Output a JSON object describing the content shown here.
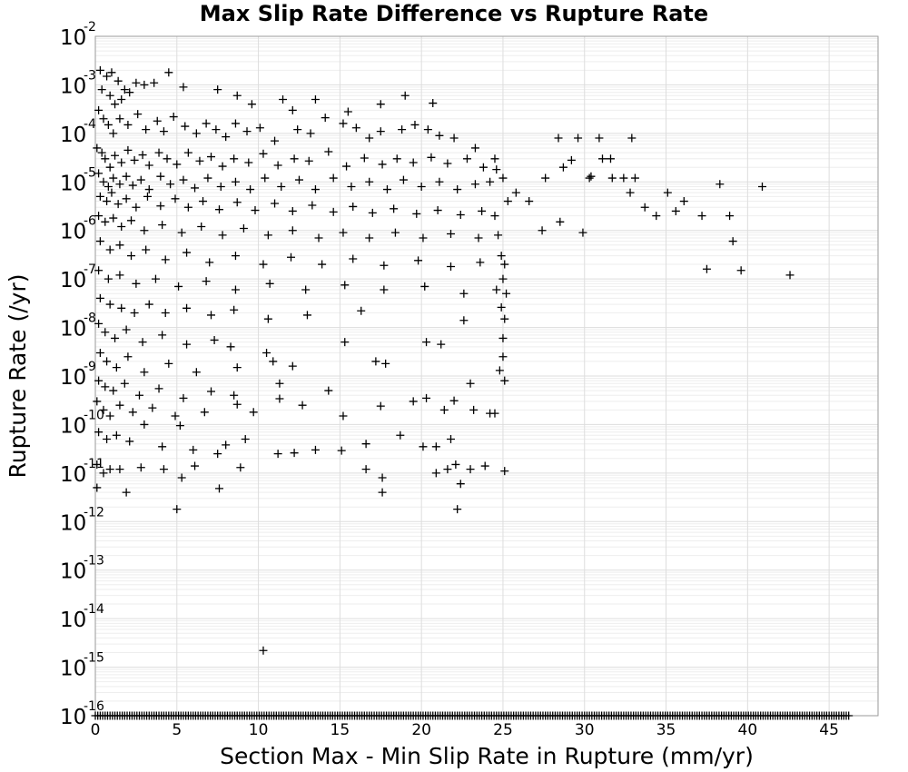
{
  "chart_data": {
    "type": "scatter",
    "title": "Max Slip Rate Difference vs Rupture Rate",
    "xlabel": "Section Max - Min Slip Rate in Rupture (mm/yr)",
    "ylabel": "Rupture Rate (/yr)",
    "x_scale": "linear",
    "y_scale": "log",
    "xlim": [
      0,
      48
    ],
    "ylim": [
      1e-16,
      0.01
    ],
    "grid": true,
    "legend": "none",
    "marker": "plus",
    "marker_color": "#000000",
    "x_ticks": [
      "0",
      "5",
      "10",
      "15",
      "20",
      "25",
      "30",
      "35",
      "40",
      "45"
    ],
    "y_ticks": [
      {
        "base": "10",
        "exp": "-2"
      },
      {
        "base": "10",
        "exp": "-3"
      },
      {
        "base": "10",
        "exp": "-4"
      },
      {
        "base": "10",
        "exp": "-5"
      },
      {
        "base": "10",
        "exp": "-6"
      },
      {
        "base": "10",
        "exp": "-7"
      },
      {
        "base": "10",
        "exp": "-8"
      },
      {
        "base": "10",
        "exp": "-9"
      },
      {
        "base": "10",
        "exp": "-10"
      },
      {
        "base": "10",
        "exp": "-11"
      },
      {
        "base": "10",
        "exp": "-12"
      },
      {
        "base": "10",
        "exp": "-13"
      },
      {
        "base": "10",
        "exp": "-14"
      },
      {
        "base": "10",
        "exp": "-15"
      },
      {
        "base": "10",
        "exp": "-16"
      }
    ],
    "points": [
      [
        0.3,
        0.002
      ],
      [
        0.7,
        0.0015
      ],
      [
        1.0,
        0.0018
      ],
      [
        1.4,
        0.0012
      ],
      [
        1.8,
        0.0008
      ],
      [
        0.4,
        0.0008
      ],
      [
        0.9,
        0.0006
      ],
      [
        1.2,
        0.0004
      ],
      [
        1.6,
        0.0005
      ],
      [
        2.1,
        0.0007
      ],
      [
        2.5,
        0.0011
      ],
      [
        3.0,
        0.001
      ],
      [
        3.6,
        0.0011
      ],
      [
        4.5,
        0.0018
      ],
      [
        5.4,
        0.0009
      ],
      [
        7.5,
        0.0008
      ],
      [
        8.7,
        0.0006
      ],
      [
        9.6,
        0.0004
      ],
      [
        11.5,
        0.0005
      ],
      [
        12.1,
        0.0003
      ],
      [
        13.5,
        0.0005
      ],
      [
        15.5,
        0.00028
      ],
      [
        17.5,
        0.0004
      ],
      [
        19.0,
        0.0006
      ],
      [
        20.7,
        0.00042
      ],
      [
        0.2,
        0.0003
      ],
      [
        0.5,
        0.0002
      ],
      [
        0.8,
        0.00015
      ],
      [
        1.1,
        0.0001
      ],
      [
        1.5,
        0.0002
      ],
      [
        2.0,
        0.00015
      ],
      [
        2.6,
        0.00025
      ],
      [
        3.1,
        0.00012
      ],
      [
        3.8,
        0.00018
      ],
      [
        4.2,
        0.00011
      ],
      [
        4.8,
        0.00022
      ],
      [
        5.5,
        0.00014
      ],
      [
        6.2,
        0.0001
      ],
      [
        6.8,
        0.00016
      ],
      [
        7.4,
        0.00012
      ],
      [
        8.0,
        8.5e-05
      ],
      [
        8.6,
        0.00016
      ],
      [
        9.3,
        0.00011
      ],
      [
        10.1,
        0.00013
      ],
      [
        11.0,
        7e-05
      ],
      [
        12.4,
        0.00012
      ],
      [
        13.2,
        0.0001
      ],
      [
        14.1,
        0.00021
      ],
      [
        15.2,
        0.00016
      ],
      [
        16.0,
        0.00013
      ],
      [
        16.8,
        8e-05
      ],
      [
        17.5,
        0.00011
      ],
      [
        18.8,
        0.00012
      ],
      [
        19.6,
        0.00015
      ],
      [
        20.4,
        0.00012
      ],
      [
        21.1,
        9e-05
      ],
      [
        22.0,
        8e-05
      ],
      [
        23.3,
        5e-05
      ],
      [
        24.5,
        3e-05
      ],
      [
        0.1,
        5e-05
      ],
      [
        0.4,
        4e-05
      ],
      [
        0.6,
        3e-05
      ],
      [
        0.9,
        2e-05
      ],
      [
        1.2,
        3.5e-05
      ],
      [
        1.6,
        2.5e-05
      ],
      [
        2.0,
        4.5e-05
      ],
      [
        2.4,
        2.8e-05
      ],
      [
        2.9,
        3.6e-05
      ],
      [
        3.3,
        2.2e-05
      ],
      [
        3.9,
        4e-05
      ],
      [
        4.4,
        3e-05
      ],
      [
        5.0,
        2.3e-05
      ],
      [
        5.7,
        4e-05
      ],
      [
        6.4,
        2.7e-05
      ],
      [
        7.1,
        3.3e-05
      ],
      [
        7.8,
        2.1e-05
      ],
      [
        8.5,
        3e-05
      ],
      [
        9.4,
        2.5e-05
      ],
      [
        10.3,
        3.8e-05
      ],
      [
        11.2,
        2.2e-05
      ],
      [
        12.2,
        3e-05
      ],
      [
        13.1,
        2.7e-05
      ],
      [
        14.3,
        4.2e-05
      ],
      [
        15.4,
        2.1e-05
      ],
      [
        16.5,
        3.1e-05
      ],
      [
        17.6,
        2.3e-05
      ],
      [
        18.5,
        3e-05
      ],
      [
        19.5,
        2.5e-05
      ],
      [
        20.6,
        3.2e-05
      ],
      [
        21.6,
        2.4e-05
      ],
      [
        22.8,
        3e-05
      ],
      [
        23.8,
        2e-05
      ],
      [
        24.6,
        1.8e-05
      ],
      [
        0.2,
        1.5e-05
      ],
      [
        0.5,
        1e-05
      ],
      [
        0.8,
        8e-06
      ],
      [
        1.1,
        1.2e-05
      ],
      [
        1.5,
        9e-06
      ],
      [
        1.9,
        1.3e-05
      ],
      [
        2.3,
        8.5e-06
      ],
      [
        2.8,
        1.1e-05
      ],
      [
        3.3,
        7e-06
      ],
      [
        4.0,
        1.3e-05
      ],
      [
        4.6,
        9e-06
      ],
      [
        5.4,
        1.1e-05
      ],
      [
        6.1,
        7.5e-06
      ],
      [
        6.9,
        1.2e-05
      ],
      [
        7.7,
        8e-06
      ],
      [
        8.6,
        1e-05
      ],
      [
        9.5,
        7e-06
      ],
      [
        10.4,
        1.2e-05
      ],
      [
        11.4,
        8e-06
      ],
      [
        12.5,
        1.1e-05
      ],
      [
        13.5,
        7e-06
      ],
      [
        14.6,
        1.2e-05
      ],
      [
        15.7,
        8e-06
      ],
      [
        16.8,
        1e-05
      ],
      [
        17.9,
        7e-06
      ],
      [
        18.9,
        1.1e-05
      ],
      [
        20.0,
        8e-06
      ],
      [
        21.1,
        1e-05
      ],
      [
        22.2,
        7e-06
      ],
      [
        23.3,
        9e-06
      ],
      [
        24.2,
        1e-05
      ],
      [
        25.0,
        1.2e-05
      ],
      [
        25.8,
        6e-06
      ],
      [
        0.3,
        5e-06
      ],
      [
        0.7,
        4e-06
      ],
      [
        1.0,
        6e-06
      ],
      [
        1.4,
        3.5e-06
      ],
      [
        1.9,
        4.5e-06
      ],
      [
        2.5,
        3e-06
      ],
      [
        3.2,
        5e-06
      ],
      [
        4.0,
        3.2e-06
      ],
      [
        4.9,
        4.5e-06
      ],
      [
        5.7,
        3e-06
      ],
      [
        6.6,
        4e-06
      ],
      [
        7.6,
        2.7e-06
      ],
      [
        8.7,
        3.8e-06
      ],
      [
        9.8,
        2.6e-06
      ],
      [
        11.0,
        3.6e-06
      ],
      [
        12.1,
        2.5e-06
      ],
      [
        13.3,
        3.3e-06
      ],
      [
        14.6,
        2.4e-06
      ],
      [
        15.8,
        3.1e-06
      ],
      [
        17.0,
        2.3e-06
      ],
      [
        18.3,
        2.8e-06
      ],
      [
        19.7,
        2.2e-06
      ],
      [
        21.0,
        2.6e-06
      ],
      [
        22.4,
        2.1e-06
      ],
      [
        23.7,
        2.5e-06
      ],
      [
        24.5,
        2e-06
      ],
      [
        25.3,
        4e-06
      ],
      [
        0.2,
        2e-06
      ],
      [
        0.6,
        1.5e-06
      ],
      [
        1.1,
        1.8e-06
      ],
      [
        1.6,
        1.2e-06
      ],
      [
        2.2,
        1.6e-06
      ],
      [
        3.0,
        1e-06
      ],
      [
        4.1,
        1.3e-06
      ],
      [
        5.3,
        9e-07
      ],
      [
        6.5,
        1.2e-06
      ],
      [
        7.8,
        8e-07
      ],
      [
        9.1,
        1.1e-06
      ],
      [
        10.6,
        8e-07
      ],
      [
        12.1,
        1e-06
      ],
      [
        13.7,
        7e-07
      ],
      [
        15.2,
        9e-07
      ],
      [
        16.8,
        7e-07
      ],
      [
        18.4,
        9e-07
      ],
      [
        20.1,
        7e-07
      ],
      [
        21.8,
        8.5e-07
      ],
      [
        23.5,
        7e-07
      ],
      [
        24.7,
        8e-07
      ],
      [
        0.3,
        6e-07
      ],
      [
        0.9,
        4e-07
      ],
      [
        1.5,
        5e-07
      ],
      [
        2.2,
        3e-07
      ],
      [
        3.1,
        4e-07
      ],
      [
        4.3,
        2.5e-07
      ],
      [
        5.6,
        3.5e-07
      ],
      [
        7.0,
        2.2e-07
      ],
      [
        8.6,
        3e-07
      ],
      [
        10.3,
        2e-07
      ],
      [
        12.0,
        2.8e-07
      ],
      [
        13.9,
        2e-07
      ],
      [
        15.8,
        2.6e-07
      ],
      [
        17.7,
        1.9e-07
      ],
      [
        19.8,
        2.4e-07
      ],
      [
        21.8,
        1.8e-07
      ],
      [
        23.6,
        2.2e-07
      ],
      [
        24.9,
        3e-07
      ],
      [
        25.1,
        2e-07
      ],
      [
        0.2,
        1.5e-07
      ],
      [
        0.8,
        1e-07
      ],
      [
        1.5,
        1.2e-07
      ],
      [
        2.5,
        8e-08
      ],
      [
        3.7,
        1e-07
      ],
      [
        5.1,
        7e-08
      ],
      [
        6.8,
        9e-08
      ],
      [
        8.6,
        6e-08
      ],
      [
        10.7,
        8e-08
      ],
      [
        12.9,
        6e-08
      ],
      [
        15.3,
        7.5e-08
      ],
      [
        17.7,
        6e-08
      ],
      [
        20.2,
        7e-08
      ],
      [
        22.6,
        5e-08
      ],
      [
        24.6,
        6e-08
      ],
      [
        25.0,
        1e-07
      ],
      [
        25.2,
        5e-08
      ],
      [
        0.3,
        4e-08
      ],
      [
        0.9,
        3e-08
      ],
      [
        1.6,
        2.5e-08
      ],
      [
        2.4,
        2e-08
      ],
      [
        3.3,
        3e-08
      ],
      [
        4.3,
        2e-08
      ],
      [
        5.6,
        2.5e-08
      ],
      [
        7.1,
        1.8e-08
      ],
      [
        8.5,
        2.3e-08
      ],
      [
        10.6,
        1.5e-08
      ],
      [
        13.0,
        1.8e-08
      ],
      [
        16.3,
        2.2e-08
      ],
      [
        22.6,
        1.4e-08
      ],
      [
        24.9,
        2.6e-08
      ],
      [
        25.1,
        1.5e-08
      ],
      [
        0.2,
        1.2e-08
      ],
      [
        0.6,
        8e-09
      ],
      [
        1.2,
        6e-09
      ],
      [
        1.9,
        9e-09
      ],
      [
        2.9,
        5e-09
      ],
      [
        4.1,
        7e-09
      ],
      [
        5.6,
        4.5e-09
      ],
      [
        7.3,
        5.5e-09
      ],
      [
        8.3,
        4e-09
      ],
      [
        10.5,
        3e-09
      ],
      [
        15.3,
        5e-09
      ],
      [
        20.3,
        5e-09
      ],
      [
        21.2,
        4.5e-09
      ],
      [
        25.0,
        6e-09
      ],
      [
        0.3,
        3e-09
      ],
      [
        0.7,
        2e-09
      ],
      [
        1.3,
        1.5e-09
      ],
      [
        2.0,
        2.5e-09
      ],
      [
        3.0,
        1.2e-09
      ],
      [
        4.5,
        1.8e-09
      ],
      [
        6.2,
        1.2e-09
      ],
      [
        8.7,
        1.5e-09
      ],
      [
        10.9,
        2e-09
      ],
      [
        12.1,
        1.6e-09
      ],
      [
        17.2,
        2e-09
      ],
      [
        17.8,
        1.8e-09
      ],
      [
        25.0,
        2.5e-09
      ],
      [
        24.8,
        1.3e-09
      ],
      [
        0.2,
        8e-10
      ],
      [
        0.6,
        6e-10
      ],
      [
        1.1,
        5e-10
      ],
      [
        1.8,
        7e-10
      ],
      [
        2.7,
        4e-10
      ],
      [
        3.9,
        5.5e-10
      ],
      [
        5.4,
        3.5e-10
      ],
      [
        7.1,
        4.8e-10
      ],
      [
        8.5,
        4e-10
      ],
      [
        11.3,
        7e-10
      ],
      [
        14.3,
        5e-10
      ],
      [
        23.0,
        7e-10
      ],
      [
        25.1,
        8e-10
      ],
      [
        0.1,
        3e-10
      ],
      [
        0.5,
        2e-10
      ],
      [
        0.9,
        1.5e-10
      ],
      [
        1.5,
        2.5e-10
      ],
      [
        2.3,
        1.8e-10
      ],
      [
        3.5,
        2.2e-10
      ],
      [
        4.9,
        1.5e-10
      ],
      [
        6.7,
        1.8e-10
      ],
      [
        8.7,
        2.6e-10
      ],
      [
        9.7,
        1.8e-10
      ],
      [
        11.3,
        3.4e-10
      ],
      [
        12.7,
        2.5e-10
      ],
      [
        15.2,
        1.5e-10
      ],
      [
        17.5,
        2.4e-10
      ],
      [
        19.5,
        3e-10
      ],
      [
        20.3,
        3.5e-10
      ],
      [
        21.4,
        2e-10
      ],
      [
        22.0,
        3.1e-10
      ],
      [
        23.2,
        2e-10
      ],
      [
        24.2,
        1.7e-10
      ],
      [
        24.5,
        1.7e-10
      ],
      [
        0.2,
        7e-11
      ],
      [
        0.7,
        5e-11
      ],
      [
        1.3,
        6e-11
      ],
      [
        2.1,
        4.5e-11
      ],
      [
        3.0,
        1e-10
      ],
      [
        4.1,
        3.5e-11
      ],
      [
        5.2,
        9.5e-11
      ],
      [
        6.0,
        3e-11
      ],
      [
        8.0,
        3.8e-11
      ],
      [
        9.2,
        5e-11
      ],
      [
        11.2,
        2.5e-11
      ],
      [
        13.5,
        3e-11
      ],
      [
        15.1,
        2.9e-11
      ],
      [
        16.6,
        4e-11
      ],
      [
        18.7,
        6e-11
      ],
      [
        20.1,
        3.5e-11
      ],
      [
        20.9,
        3.5e-11
      ],
      [
        21.8,
        5e-11
      ],
      [
        0.1,
        1.5e-11
      ],
      [
        0.5,
        1e-11
      ],
      [
        0.9,
        1.2e-11
      ],
      [
        1.5,
        1.2e-11
      ],
      [
        2.8,
        1.3e-11
      ],
      [
        4.2,
        1.2e-11
      ],
      [
        5.3,
        8e-12
      ],
      [
        6.1,
        1.4e-11
      ],
      [
        7.5,
        2.5e-11
      ],
      [
        8.9,
        1.3e-11
      ],
      [
        12.2,
        2.6e-11
      ],
      [
        16.6,
        1.2e-11
      ],
      [
        17.6,
        8e-12
      ],
      [
        20.9,
        1e-11
      ],
      [
        21.6,
        1.2e-11
      ],
      [
        22.1,
        1.5e-11
      ],
      [
        23.0,
        1.2e-11
      ],
      [
        23.9,
        1.4e-11
      ],
      [
        25.1,
        1.1e-11
      ],
      [
        0.1,
        5e-12
      ],
      [
        1.9,
        4e-12
      ],
      [
        7.6,
        4.8e-12
      ],
      [
        17.6,
        4e-12
      ],
      [
        22.4,
        6e-12
      ],
      [
        5.0,
        1.8e-12
      ],
      [
        22.2,
        1.8e-12
      ],
      [
        10.3,
        2.2e-15
      ],
      [
        26.6,
        4e-06
      ],
      [
        27.4,
        1e-06
      ],
      [
        28.5,
        1.5e-06
      ],
      [
        27.6,
        1.2e-05
      ],
      [
        28.4,
        8e-05
      ],
      [
        28.7,
        2e-05
      ],
      [
        29.2,
        2.8e-05
      ],
      [
        29.6,
        8e-05
      ],
      [
        30.3,
        1.2e-05
      ],
      [
        30.9,
        8e-05
      ],
      [
        31.1,
        3e-05
      ],
      [
        31.6,
        3e-05
      ],
      [
        31.7,
        1.2e-05
      ],
      [
        32.9,
        8e-05
      ],
      [
        33.1,
        1.2e-05
      ],
      [
        32.8,
        6e-06
      ],
      [
        33.7,
        3e-06
      ],
      [
        34.4,
        2e-06
      ],
      [
        35.1,
        6e-06
      ],
      [
        35.6,
        2.5e-06
      ],
      [
        36.1,
        4e-06
      ],
      [
        37.2,
        2e-06
      ],
      [
        37.5,
        1.6e-07
      ],
      [
        38.3,
        9e-06
      ],
      [
        38.9,
        2e-06
      ],
      [
        39.1,
        6e-07
      ],
      [
        39.6,
        1.5e-07
      ],
      [
        40.9,
        8e-06
      ],
      [
        42.6,
        1.2e-07
      ],
      [
        29.9,
        9e-07
      ],
      [
        32.4,
        1.2e-05
      ],
      [
        30.4,
        1.3e-05
      ]
    ],
    "floor_points": {
      "y": 1e-16,
      "x_start": 0,
      "x_end": 46.2,
      "x_step": 0.15
    }
  }
}
